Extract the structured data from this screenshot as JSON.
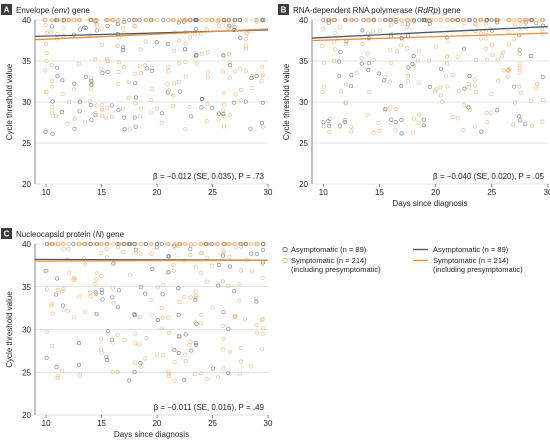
{
  "chart_data": [
    {
      "type": "scatter",
      "panel": "A",
      "title": "Envelope (env) gene",
      "title_parts": [
        {
          "text": "Envelope (",
          "italic": false
        },
        {
          "text": "env",
          "italic": true
        },
        {
          "text": ") gene",
          "italic": false
        }
      ],
      "xlabel": "",
      "ylabel": "Cycle threshold value",
      "xlim": [
        9,
        30
      ],
      "ylim": [
        20,
        40
      ],
      "xticks": [
        10,
        15,
        20,
        25,
        30
      ],
      "yticks": [
        20,
        25,
        30,
        35,
        40
      ],
      "grid": "horizontal",
      "stat": "β = −0.012 (SE, 0.035), P = .73",
      "lines": [
        {
          "series": "Asymptomatic",
          "x": [
            9,
            30
          ],
          "y": [
            38.0,
            38.8
          ]
        },
        {
          "series": "Symptomatic",
          "x": [
            9,
            30
          ],
          "y": [
            37.6,
            38.9
          ]
        }
      ]
    },
    {
      "type": "scatter",
      "panel": "B",
      "title": "RNA-dependent RNA polymerase (RdRp) gene",
      "title_parts": [
        {
          "text": "RNA-dependent RNA polymerase (",
          "italic": false
        },
        {
          "text": "RdRp",
          "italic": true
        },
        {
          "text": ") gene",
          "italic": false
        }
      ],
      "xlabel": "Days since diagnosis",
      "ylabel": "Cycle threshold value",
      "xlim": [
        9,
        30
      ],
      "ylim": [
        20,
        40
      ],
      "xticks": [
        10,
        15,
        20,
        25,
        30
      ],
      "yticks": [
        20,
        25,
        30,
        35,
        40
      ],
      "grid": "horizontal",
      "stat": "β = −0.040 (SE, 0.020), P = .05",
      "lines": [
        {
          "series": "Asymptomatic",
          "x": [
            9,
            30
          ],
          "y": [
            37.8,
            39.2
          ]
        },
        {
          "series": "Symptomatic",
          "x": [
            9,
            30
          ],
          "y": [
            37.5,
            38.4
          ]
        }
      ]
    },
    {
      "type": "scatter",
      "panel": "C",
      "title": "Nucleocapsid protein (N) gene",
      "title_parts": [
        {
          "text": "Nucleocapsid protein (",
          "italic": false
        },
        {
          "text": "N",
          "italic": true
        },
        {
          "text": ") gene",
          "italic": false
        }
      ],
      "xlabel": "Days since diagnosis",
      "ylabel": "Cycle threshold value",
      "xlim": [
        9,
        30
      ],
      "ylim": [
        20,
        40
      ],
      "xticks": [
        10,
        15,
        20,
        25,
        30
      ],
      "yticks": [
        20,
        25,
        30,
        35,
        40
      ],
      "grid": "horizontal",
      "stat": "β = −0.011 (SE, 0.016), P = .49",
      "lines": [
        {
          "series": "Asymptomatic",
          "x": [
            9,
            30
          ],
          "y": [
            38.2,
            38.1
          ]
        },
        {
          "series": "Symptomatic",
          "x": [
            9,
            30
          ],
          "y": [
            38.0,
            38.1
          ]
        }
      ]
    }
  ],
  "series": [
    {
      "name": "Asymptomatic",
      "n": "89",
      "color": "#4a5a6b"
    },
    {
      "name": "Symptomatic",
      "n": "214",
      "note": "(including presymptomatic)",
      "color": "#e8903a"
    }
  ],
  "legend": {
    "placement": "right of panel C",
    "markers": [
      {
        "line1": "Asymptomatic (n = 89)",
        "line2": ""
      },
      {
        "line1": "Symptomatic (n = 214)",
        "line2": "(including presymptomatic)"
      }
    ],
    "lines": [
      {
        "line1": "Asymptomatic (n = 89)",
        "line2": ""
      },
      {
        "line1": "Symptomatic (n = 214)",
        "line2": "(including presymptomatic)"
      }
    ]
  },
  "colors": {
    "panel_letter_bg": "#3c3c3c",
    "grid": "#c8c8c8",
    "asymptomatic": "#4a5a6b",
    "symptomatic": "#e8903a",
    "symptomatic_marker": "#f0b27a"
  }
}
